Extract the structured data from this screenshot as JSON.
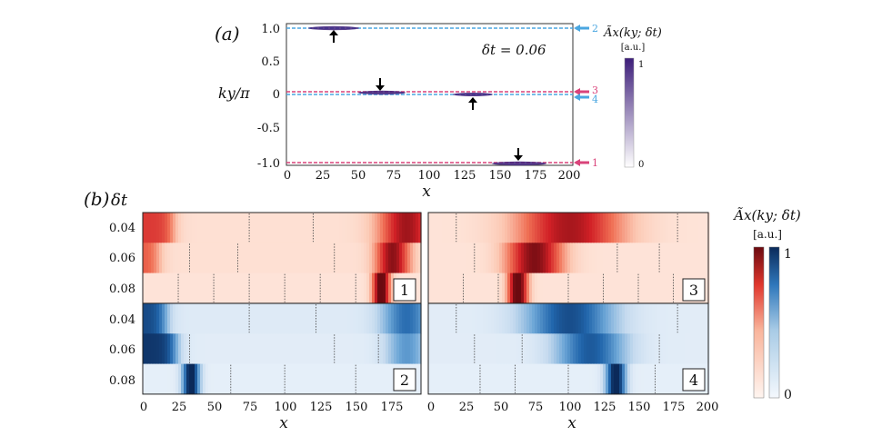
{
  "figure": {
    "panel_a_label": "(a)",
    "panel_b_label": "(b)",
    "dt_header": "δt",
    "colorbar_title_a": "Ãx(ky; δt)",
    "colorbar_title_b": "Ãx(ky; δt)",
    "colorbar_units": "[a.u.]",
    "colorbar_a_max": "1",
    "colorbar_a_min": "0",
    "colorbar_b_max": "1",
    "colorbar_b_min": "0",
    "dt_annotation": "δt = 0.06"
  },
  "colors": {
    "red_strong": "#6b0a10",
    "red_mid": "#e0372d",
    "red_light": "#fde6dd",
    "blue_strong": "#0b2a5a",
    "blue_mid": "#2e77bb",
    "blue_light": "#e7f0f9",
    "purple": "#3d1e7a",
    "pink_line": "#d9437a",
    "cyan_line": "#4aa6e0"
  },
  "chart_data": [
    {
      "type": "heatmap",
      "title": "(a)",
      "xlabel": "x",
      "ylabel": "ky/π",
      "xlim": [
        0,
        200
      ],
      "ylim": [
        -1.0,
        1.05
      ],
      "x_ticks": [
        "0",
        "25",
        "50",
        "75",
        "100",
        "125",
        "150",
        "175",
        "200"
      ],
      "x_tick_values": [
        0,
        25,
        50,
        75,
        100,
        125,
        150,
        175,
        200
      ],
      "y_ticks": [
        "1.0",
        "0.5",
        "0",
        "-0.5",
        "-1.0"
      ],
      "y_tick_values": [
        1.0,
        0.5,
        0,
        -0.5,
        -1.0
      ],
      "annotation": "δt = 0.06",
      "lines": [
        {
          "label": "2",
          "ky": 1.0,
          "color": "cyan",
          "peak_x": 33,
          "arrow": "up"
        },
        {
          "label": "3",
          "ky": 0.0,
          "color": "pink",
          "peak_x": 67,
          "arrow": "down"
        },
        {
          "label": "4",
          "ky": -0.01,
          "color": "cyan",
          "peak_x": 133,
          "arrow": "up"
        },
        {
          "label": "1",
          "ky": -1.0,
          "color": "pink",
          "peak_x": 167,
          "arrow": "down"
        }
      ],
      "colorbar": {
        "min": 0,
        "max": 1,
        "units": "[a.u.]"
      }
    },
    {
      "type": "heatmap",
      "title": "(b)",
      "xlabel": "x",
      "ylabel": "δt",
      "xlim": [
        0,
        200
      ],
      "x_ticks_left": [
        "0",
        "25",
        "50",
        "75",
        "100",
        "125",
        "150",
        "175"
      ],
      "x_tick_values_left": [
        0,
        25,
        50,
        75,
        100,
        125,
        150,
        175
      ],
      "x_ticks_right": [
        "0",
        "25",
        "50",
        "75",
        "100",
        "125",
        "150",
        "175",
        "200"
      ],
      "x_tick_values_right": [
        0,
        25,
        50,
        75,
        100,
        125,
        150,
        175,
        200
      ],
      "row_labels": [
        "0.04",
        "0.06",
        "0.08"
      ],
      "row_values": [
        0.04,
        0.06,
        0.08
      ],
      "panels": [
        {
          "label": "1",
          "scheme": "red",
          "rows": [
            {
              "dt": 0.04,
              "peak_x": 185,
              "width": 20,
              "amp": 0.75,
              "base": 0.12,
              "edge_x": 20,
              "edge_amp": 0.55,
              "dots": [
                75,
                120
              ]
            },
            {
              "dt": 0.06,
              "peak_x": 175,
              "width": 12,
              "amp": 0.8,
              "base": 0.12,
              "edge_x": 10,
              "edge_amp": 0.45,
              "dots": [
                33,
                67,
                135
              ]
            },
            {
              "dt": 0.08,
              "peak_x": 167,
              "width": 6,
              "amp": 1.0,
              "base": 0.1,
              "edge_x": 0,
              "edge_amp": 0.0,
              "dots": [
                25,
                50,
                75,
                100,
                125,
                150
              ]
            }
          ]
        },
        {
          "label": "3",
          "scheme": "red",
          "rows": [
            {
              "dt": 0.04,
              "peak_x": 100,
              "width": 38,
              "amp": 0.75,
              "base": 0.1,
              "edge_x": 0,
              "edge_amp": 0.0,
              "dots": [
                20,
                178
              ]
            },
            {
              "dt": 0.06,
              "peak_x": 75,
              "width": 20,
              "amp": 0.85,
              "base": 0.1,
              "edge_x": 0,
              "edge_amp": 0.0,
              "dots": [
                33,
                135,
                165
              ]
            },
            {
              "dt": 0.08,
              "peak_x": 63,
              "width": 7,
              "amp": 1.0,
              "base": 0.1,
              "edge_x": 0,
              "edge_amp": 0.0,
              "dots": [
                25,
                50,
                100,
                125,
                150,
                175
              ]
            }
          ]
        },
        {
          "label": "2",
          "scheme": "blue",
          "rows": [
            {
              "dt": 0.04,
              "peak_x": 185,
              "width": 18,
              "amp": 0.6,
              "base": 0.12,
              "edge_x": 15,
              "edge_amp": 0.75,
              "dots": [
                75,
                122
              ]
            },
            {
              "dt": 0.06,
              "peak_x": 185,
              "width": 15,
              "amp": 0.45,
              "base": 0.1,
              "edge_x": 22,
              "edge_amp": 0.85,
              "dots": [
                33,
                135,
                166
              ]
            },
            {
              "dt": 0.08,
              "peak_x": 33,
              "width": 6,
              "amp": 1.0,
              "base": 0.08,
              "edge_x": 0,
              "edge_amp": 0.0,
              "dots": [
                62,
                100,
                150
              ]
            }
          ]
        },
        {
          "label": "4",
          "scheme": "blue",
          "rows": [
            {
              "dt": 0.04,
              "peak_x": 100,
              "width": 32,
              "amp": 0.75,
              "base": 0.1,
              "edge_x": 0,
              "edge_amp": 0.0,
              "dots": [
                20,
                178
              ]
            },
            {
              "dt": 0.06,
              "peak_x": 115,
              "width": 25,
              "amp": 0.7,
              "base": 0.1,
              "edge_x": 0,
              "edge_amp": 0.0,
              "dots": [
                33,
                67,
                165
              ]
            },
            {
              "dt": 0.08,
              "peak_x": 133,
              "width": 7,
              "amp": 1.0,
              "base": 0.08,
              "edge_x": 0,
              "edge_amp": 0.0,
              "dots": [
                37,
                62,
                100,
                162
              ]
            }
          ]
        }
      ],
      "colorbar": {
        "min": 0,
        "max": 1,
        "units": "[a.u.]"
      }
    }
  ]
}
